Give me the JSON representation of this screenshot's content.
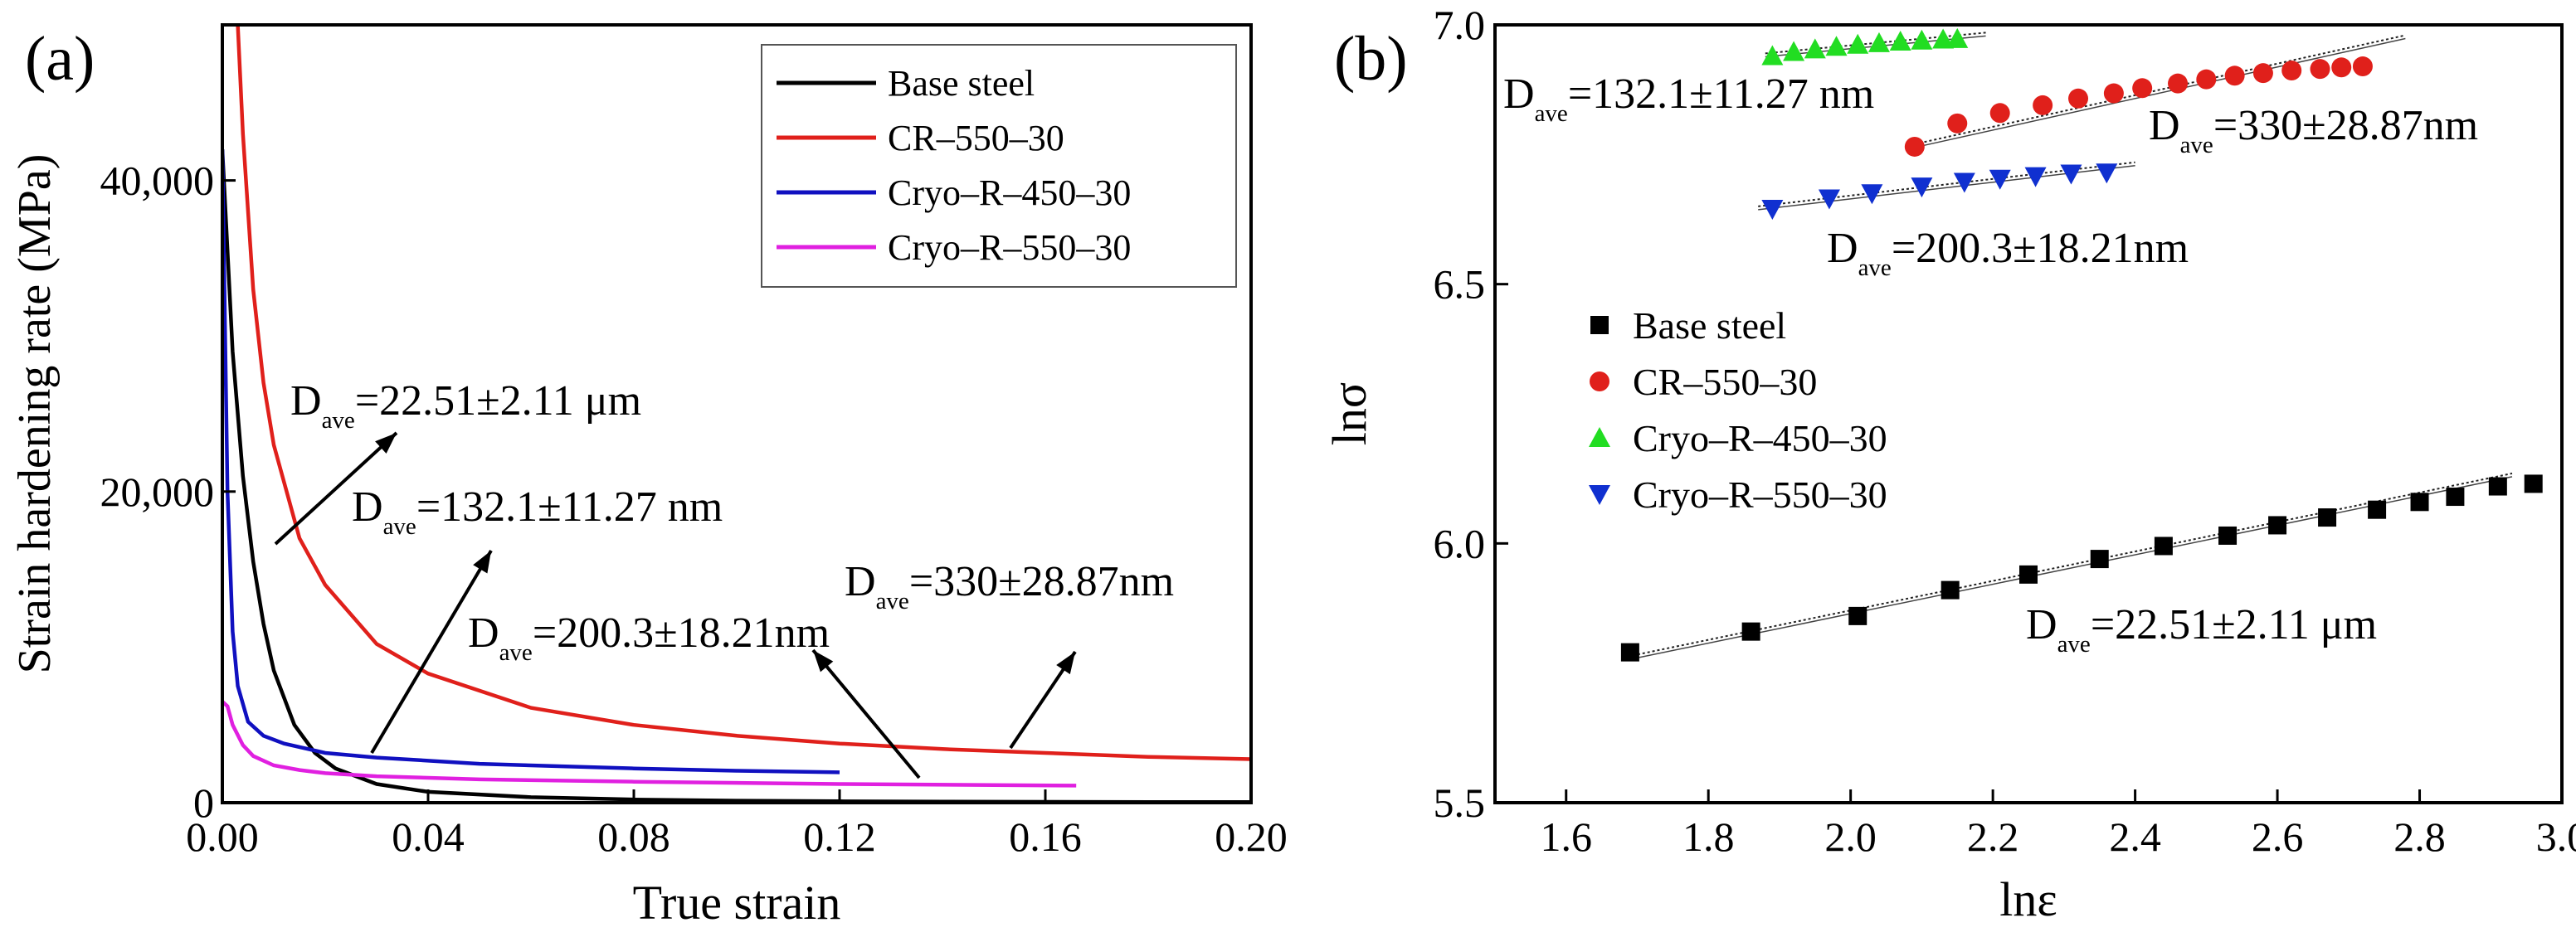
{
  "panels": {
    "a": {
      "label": "(a)"
    },
    "b": {
      "label": "(b)"
    }
  },
  "chart_data": [
    {
      "type": "line",
      "panel": "(a)",
      "title": "",
      "xlabel": "True strain",
      "ylabel": "Strain hardening rate (MPa)",
      "xlim": [
        0.0,
        0.2
      ],
      "ylim": [
        0,
        50000
      ],
      "xticks": [
        0.0,
        0.04,
        0.08,
        0.12,
        0.16,
        0.2
      ],
      "xtick_labels": [
        "0.00",
        "0.04",
        "0.08",
        "0.12",
        "0.16",
        "0.20"
      ],
      "yticks": [
        0,
        20000,
        40000
      ],
      "ytick_labels": [
        "0",
        "20,000",
        "40,000"
      ],
      "grid": false,
      "legend_position": "top-right",
      "series": [
        {
          "name": "Base steel",
          "color": "#000000",
          "x": [
            0.0,
            0.002,
            0.004,
            0.006,
            0.008,
            0.01,
            0.014,
            0.018,
            0.022,
            0.03,
            0.04,
            0.06,
            0.08,
            0.1,
            0.12,
            0.14,
            0.16,
            0.18,
            0.2
          ],
          "y": [
            42000,
            29000,
            21000,
            15500,
            11500,
            8500,
            5000,
            3200,
            2200,
            1200,
            700,
            350,
            200,
            130,
            90,
            70,
            55,
            45,
            40
          ]
        },
        {
          "name": "CR–550–30",
          "color": "#e0201b",
          "x": [
            0.003,
            0.004,
            0.006,
            0.008,
            0.01,
            0.015,
            0.02,
            0.03,
            0.04,
            0.06,
            0.08,
            0.1,
            0.12,
            0.14,
            0.16,
            0.18,
            0.2
          ],
          "y": [
            50000,
            43000,
            33000,
            27000,
            23000,
            17000,
            14000,
            10200,
            8300,
            6100,
            5000,
            4300,
            3800,
            3450,
            3200,
            2950,
            2800
          ]
        },
        {
          "name": "Cryo–R–450–30",
          "color": "#1010c0",
          "x": [
            0.0,
            0.001,
            0.002,
            0.003,
            0.005,
            0.008,
            0.012,
            0.02,
            0.03,
            0.05,
            0.08,
            0.1,
            0.12
          ],
          "y": [
            42000,
            20000,
            11000,
            7500,
            5200,
            4300,
            3800,
            3200,
            2900,
            2500,
            2200,
            2050,
            1950
          ]
        },
        {
          "name": "Cryo–R–550–30",
          "color": "#e020e0",
          "x": [
            0.0,
            0.001,
            0.002,
            0.004,
            0.006,
            0.01,
            0.015,
            0.02,
            0.03,
            0.05,
            0.08,
            0.12,
            0.166
          ],
          "y": [
            6500,
            6200,
            5000,
            3700,
            3000,
            2400,
            2100,
            1900,
            1700,
            1500,
            1350,
            1200,
            1100
          ]
        }
      ],
      "annotations": [
        {
          "text_main": "D",
          "text_sub": "ave",
          "text_rest": "=22.51±2.11 μm"
        },
        {
          "text_main": "D",
          "text_sub": "ave",
          "text_rest": "=132.1±11.27 nm"
        },
        {
          "text_main": "D",
          "text_sub": "ave",
          "text_rest": "=200.3±18.21nm"
        },
        {
          "text_main": "D",
          "text_sub": "ave",
          "text_rest": "=330±28.87nm"
        }
      ]
    },
    {
      "type": "scatter",
      "panel": "(b)",
      "title": "",
      "xlabel": "lnε",
      "ylabel": "lnσ",
      "xlim": [
        1.5,
        3.0
      ],
      "ylim": [
        5.5,
        7.0
      ],
      "xticks": [
        1.6,
        1.8,
        2.0,
        2.2,
        2.4,
        2.6,
        2.8,
        3.0
      ],
      "xtick_labels": [
        "1.6",
        "1.8",
        "2.0",
        "2.2",
        "2.4",
        "2.6",
        "2.8",
        "3.0"
      ],
      "yticks": [
        5.5,
        6.0,
        6.5,
        7.0
      ],
      "ytick_labels": [
        "5.5",
        "6.0",
        "6.5",
        "7.0"
      ],
      "grid": false,
      "legend_position": "center-left",
      "series": [
        {
          "name": "Base steel",
          "marker": "square",
          "color": "#000000",
          "x": [
            1.69,
            1.86,
            2.01,
            2.14,
            2.25,
            2.35,
            2.44,
            2.53,
            2.6,
            2.67,
            2.74,
            2.8,
            2.85,
            2.91,
            2.96
          ],
          "y": [
            5.79,
            5.83,
            5.86,
            5.91,
            5.94,
            5.97,
            5.995,
            6.015,
            6.035,
            6.05,
            6.065,
            6.08,
            6.09,
            6.11,
            6.115
          ],
          "fit": {
            "x": [
              1.68,
              2.93
            ],
            "y": [
              5.78,
              6.135
            ]
          }
        },
        {
          "name": "CR–550–30",
          "marker": "circle",
          "color": "#e0201b",
          "x": [
            2.09,
            2.15,
            2.21,
            2.27,
            2.32,
            2.37,
            2.41,
            2.46,
            2.5,
            2.54,
            2.58,
            2.62,
            2.66,
            2.69,
            2.72
          ],
          "y": [
            6.765,
            6.81,
            6.83,
            6.845,
            6.858,
            6.868,
            6.878,
            6.887,
            6.895,
            6.902,
            6.907,
            6.912,
            6.915,
            6.918,
            6.92
          ],
          "fit": {
            "x": [
              2.09,
              2.78
            ],
            "y": [
              6.77,
              6.98
            ]
          }
        },
        {
          "name": "Cryo–R–450–30",
          "marker": "triangle-up",
          "color": "#22dd22",
          "x": [
            1.89,
            1.92,
            1.95,
            1.98,
            2.01,
            2.04,
            2.07,
            2.1,
            2.13,
            2.15
          ],
          "y": [
            6.94,
            6.948,
            6.953,
            6.958,
            6.962,
            6.965,
            6.968,
            6.97,
            6.972,
            6.973
          ],
          "fit": {
            "x": [
              1.88,
              2.19
            ],
            "y": [
              6.945,
              6.985
            ]
          }
        },
        {
          "name": "Cryo–R–550–30",
          "marker": "triangle-down",
          "color": "#1030d0",
          "x": [
            1.89,
            1.97,
            2.03,
            2.1,
            2.16,
            2.21,
            2.26,
            2.31,
            2.36
          ],
          "y": [
            6.645,
            6.665,
            6.675,
            6.688,
            6.697,
            6.703,
            6.708,
            6.713,
            6.715
          ],
          "fit": {
            "x": [
              1.87,
              2.4
            ],
            "y": [
              6.65,
              6.735
            ]
          }
        }
      ],
      "annotations": [
        {
          "text_main": "D",
          "text_sub": "ave",
          "text_rest": "=132.1±11.27 nm"
        },
        {
          "text_main": "D",
          "text_sub": "ave",
          "text_rest": "=330±28.87nm"
        },
        {
          "text_main": "D",
          "text_sub": "ave",
          "text_rest": "=200.3±18.21nm"
        },
        {
          "text_main": "D",
          "text_sub": "ave",
          "text_rest": "=22.51±2.11 μm"
        }
      ]
    }
  ]
}
